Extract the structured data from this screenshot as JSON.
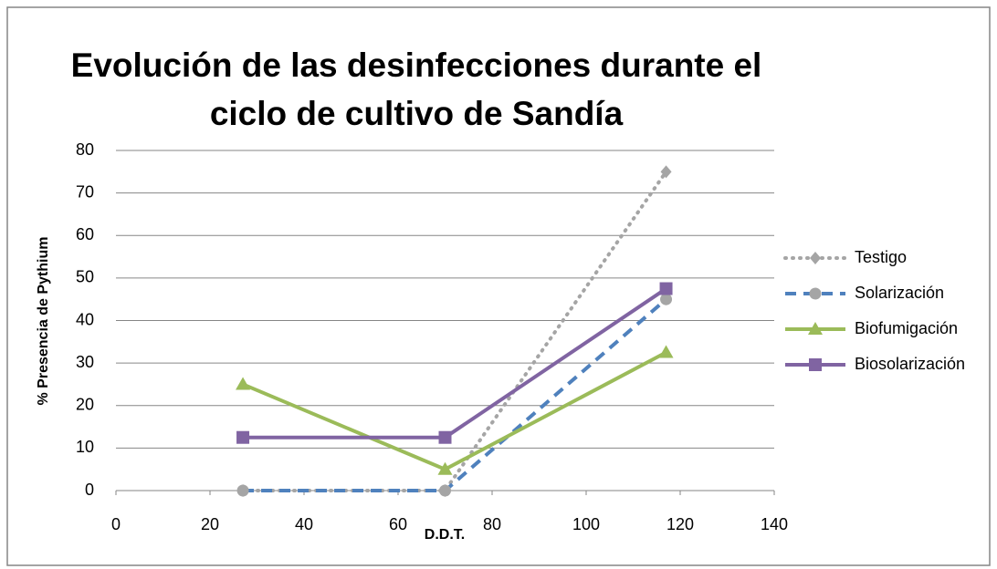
{
  "chart_data": {
    "type": "line",
    "title": [
      "Evolución de las desinfecciones durante el",
      "ciclo de cultivo de Sandía"
    ],
    "x_label": "D.D.T.",
    "y_label": "% Presencia de Pythium",
    "x": [
      27,
      70,
      117
    ],
    "series": [
      {
        "name": "Testigo",
        "color": "#a5a5a5",
        "marker_color": "#a5a5a5",
        "marker": "diamond",
        "dash": "dotted",
        "values": [
          0,
          0,
          75
        ]
      },
      {
        "name": "Solarización",
        "color": "#4f81bd",
        "marker_color": "#a5a5a5",
        "marker": "circle",
        "dash": "dashed",
        "values": [
          0,
          0,
          45
        ]
      },
      {
        "name": "Biofumigación",
        "color": "#9bbb59",
        "marker_color": "#9bbb59",
        "marker": "triangle",
        "dash": "solid",
        "values": [
          25,
          5,
          32.5
        ]
      },
      {
        "name": "Biosolarización",
        "color": "#8064a2",
        "marker_color": "#8064a2",
        "marker": "square",
        "dash": "solid",
        "values": [
          12.5,
          12.5,
          47.5
        ]
      }
    ],
    "xlim": [
      0,
      140
    ],
    "xticks": [
      0,
      20,
      40,
      60,
      80,
      100,
      120,
      140
    ],
    "ylim": [
      0,
      80
    ],
    "yticks": [
      0,
      10,
      20,
      30,
      40,
      50,
      60,
      70,
      80
    ],
    "grid": true,
    "legend": "right"
  }
}
